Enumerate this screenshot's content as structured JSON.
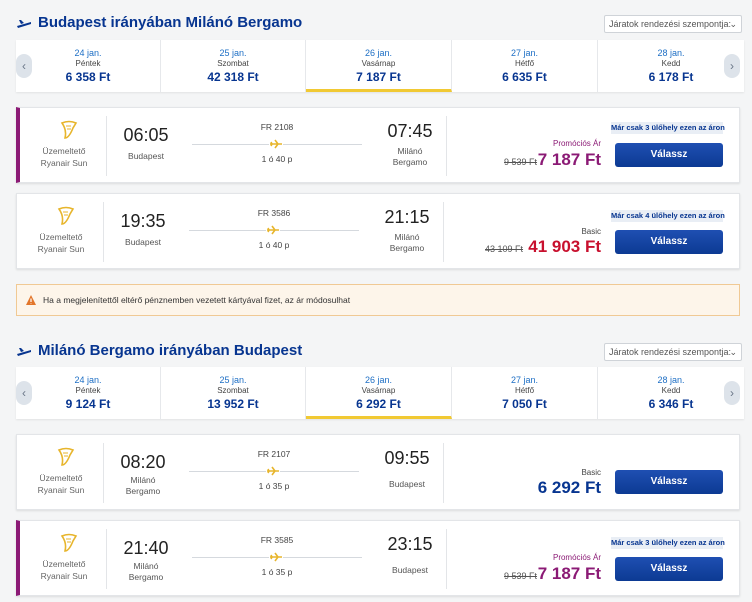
{
  "sections": [
    {
      "title": "Budapest irányában Milánó Bergamo",
      "sort_label": "Járatok rendezési szempontja:",
      "dates": [
        {
          "date": "24 jan.",
          "weekday": "Péntek",
          "price": "6 358 Ft"
        },
        {
          "date": "25 jan.",
          "weekday": "Szombat",
          "price": "42 318 Ft"
        },
        {
          "date": "26 jan.",
          "weekday": "Vasárnap",
          "price": "7 187 Ft"
        },
        {
          "date": "27 jan.",
          "weekday": "Hétfő",
          "price": "6 635 Ft"
        },
        {
          "date": "28 jan.",
          "weekday": "Kedd",
          "price": "6 178 Ft"
        }
      ],
      "flights": [
        {
          "operator1": "Üzemeltető",
          "operator2": "Ryanair Sun",
          "dep_time": "06:05",
          "dep_city1": "Budapest",
          "dep_city2": "",
          "flight_no": "FR 2108",
          "duration": "1 ó 40 p",
          "arr_time": "07:45",
          "arr_city1": "Milánó",
          "arr_city2": "Bergamo",
          "badge": "Már csak 3 ülőhely ezen az áron",
          "fare": "Promóciós Ár",
          "old_price": "9 539 Ft",
          "price": "7 187 Ft",
          "button": "Válassz"
        },
        {
          "operator1": "Üzemeltető",
          "operator2": "Ryanair Sun",
          "dep_time": "19:35",
          "dep_city1": "Budapest",
          "dep_city2": "",
          "flight_no": "FR 3586",
          "duration": "1 ó 40 p",
          "arr_time": "21:15",
          "arr_city1": "Milánó",
          "arr_city2": "Bergamo",
          "badge": "Már csak 4 ülőhely ezen az áron",
          "fare": "Basic",
          "old_price": "43 109 Ft",
          "price": "41 903 Ft",
          "button": "Válassz"
        }
      ]
    },
    {
      "title": "Milánó Bergamo irányában Budapest",
      "sort_label": "Járatok rendezési szempontja:",
      "dates": [
        {
          "date": "24 jan.",
          "weekday": "Péntek",
          "price": "9 124 Ft"
        },
        {
          "date": "25 jan.",
          "weekday": "Szombat",
          "price": "13 952 Ft"
        },
        {
          "date": "26 jan.",
          "weekday": "Vasárnap",
          "price": "6 292 Ft"
        },
        {
          "date": "27 jan.",
          "weekday": "Hétfő",
          "price": "7 050 Ft"
        },
        {
          "date": "28 jan.",
          "weekday": "Kedd",
          "price": "6 346 Ft"
        }
      ],
      "flights": [
        {
          "operator1": "Üzemeltető",
          "operator2": "Ryanair Sun",
          "dep_time": "08:20",
          "dep_city1": "Milánó",
          "dep_city2": "Bergamo",
          "flight_no": "FR 2107",
          "duration": "1 ó 35 p",
          "arr_time": "09:55",
          "arr_city1": "Budapest",
          "arr_city2": "",
          "badge": "",
          "fare": "Basic",
          "old_price": "",
          "price": "6 292 Ft",
          "button": "Válassz"
        },
        {
          "operator1": "Üzemeltető",
          "operator2": "Ryanair Sun",
          "dep_time": "21:40",
          "dep_city1": "Milánó",
          "dep_city2": "Bergamo",
          "flight_no": "FR 3585",
          "duration": "1 ó 35 p",
          "arr_time": "23:15",
          "arr_city1": "Budapest",
          "arr_city2": "",
          "badge": "Már csak 3 ülőhely ezen az áron",
          "fare": "Promóciós Ár",
          "old_price": "9 539 Ft",
          "price": "7 187 Ft",
          "button": "Válassz"
        }
      ]
    }
  ],
  "warning": "Ha a megjelenítettől eltérő pénznemben vezetett kártyával fizet, az ár módosulhat",
  "colors": {
    "brand_blue": "#073590",
    "promo": "#8b1a75",
    "basic_red": "#c8102e",
    "select_yellow": "#f1c933"
  },
  "icons": {
    "heading": "plane-icon",
    "logo": "ryanair-harp-icon",
    "warning": "warning-icon"
  }
}
